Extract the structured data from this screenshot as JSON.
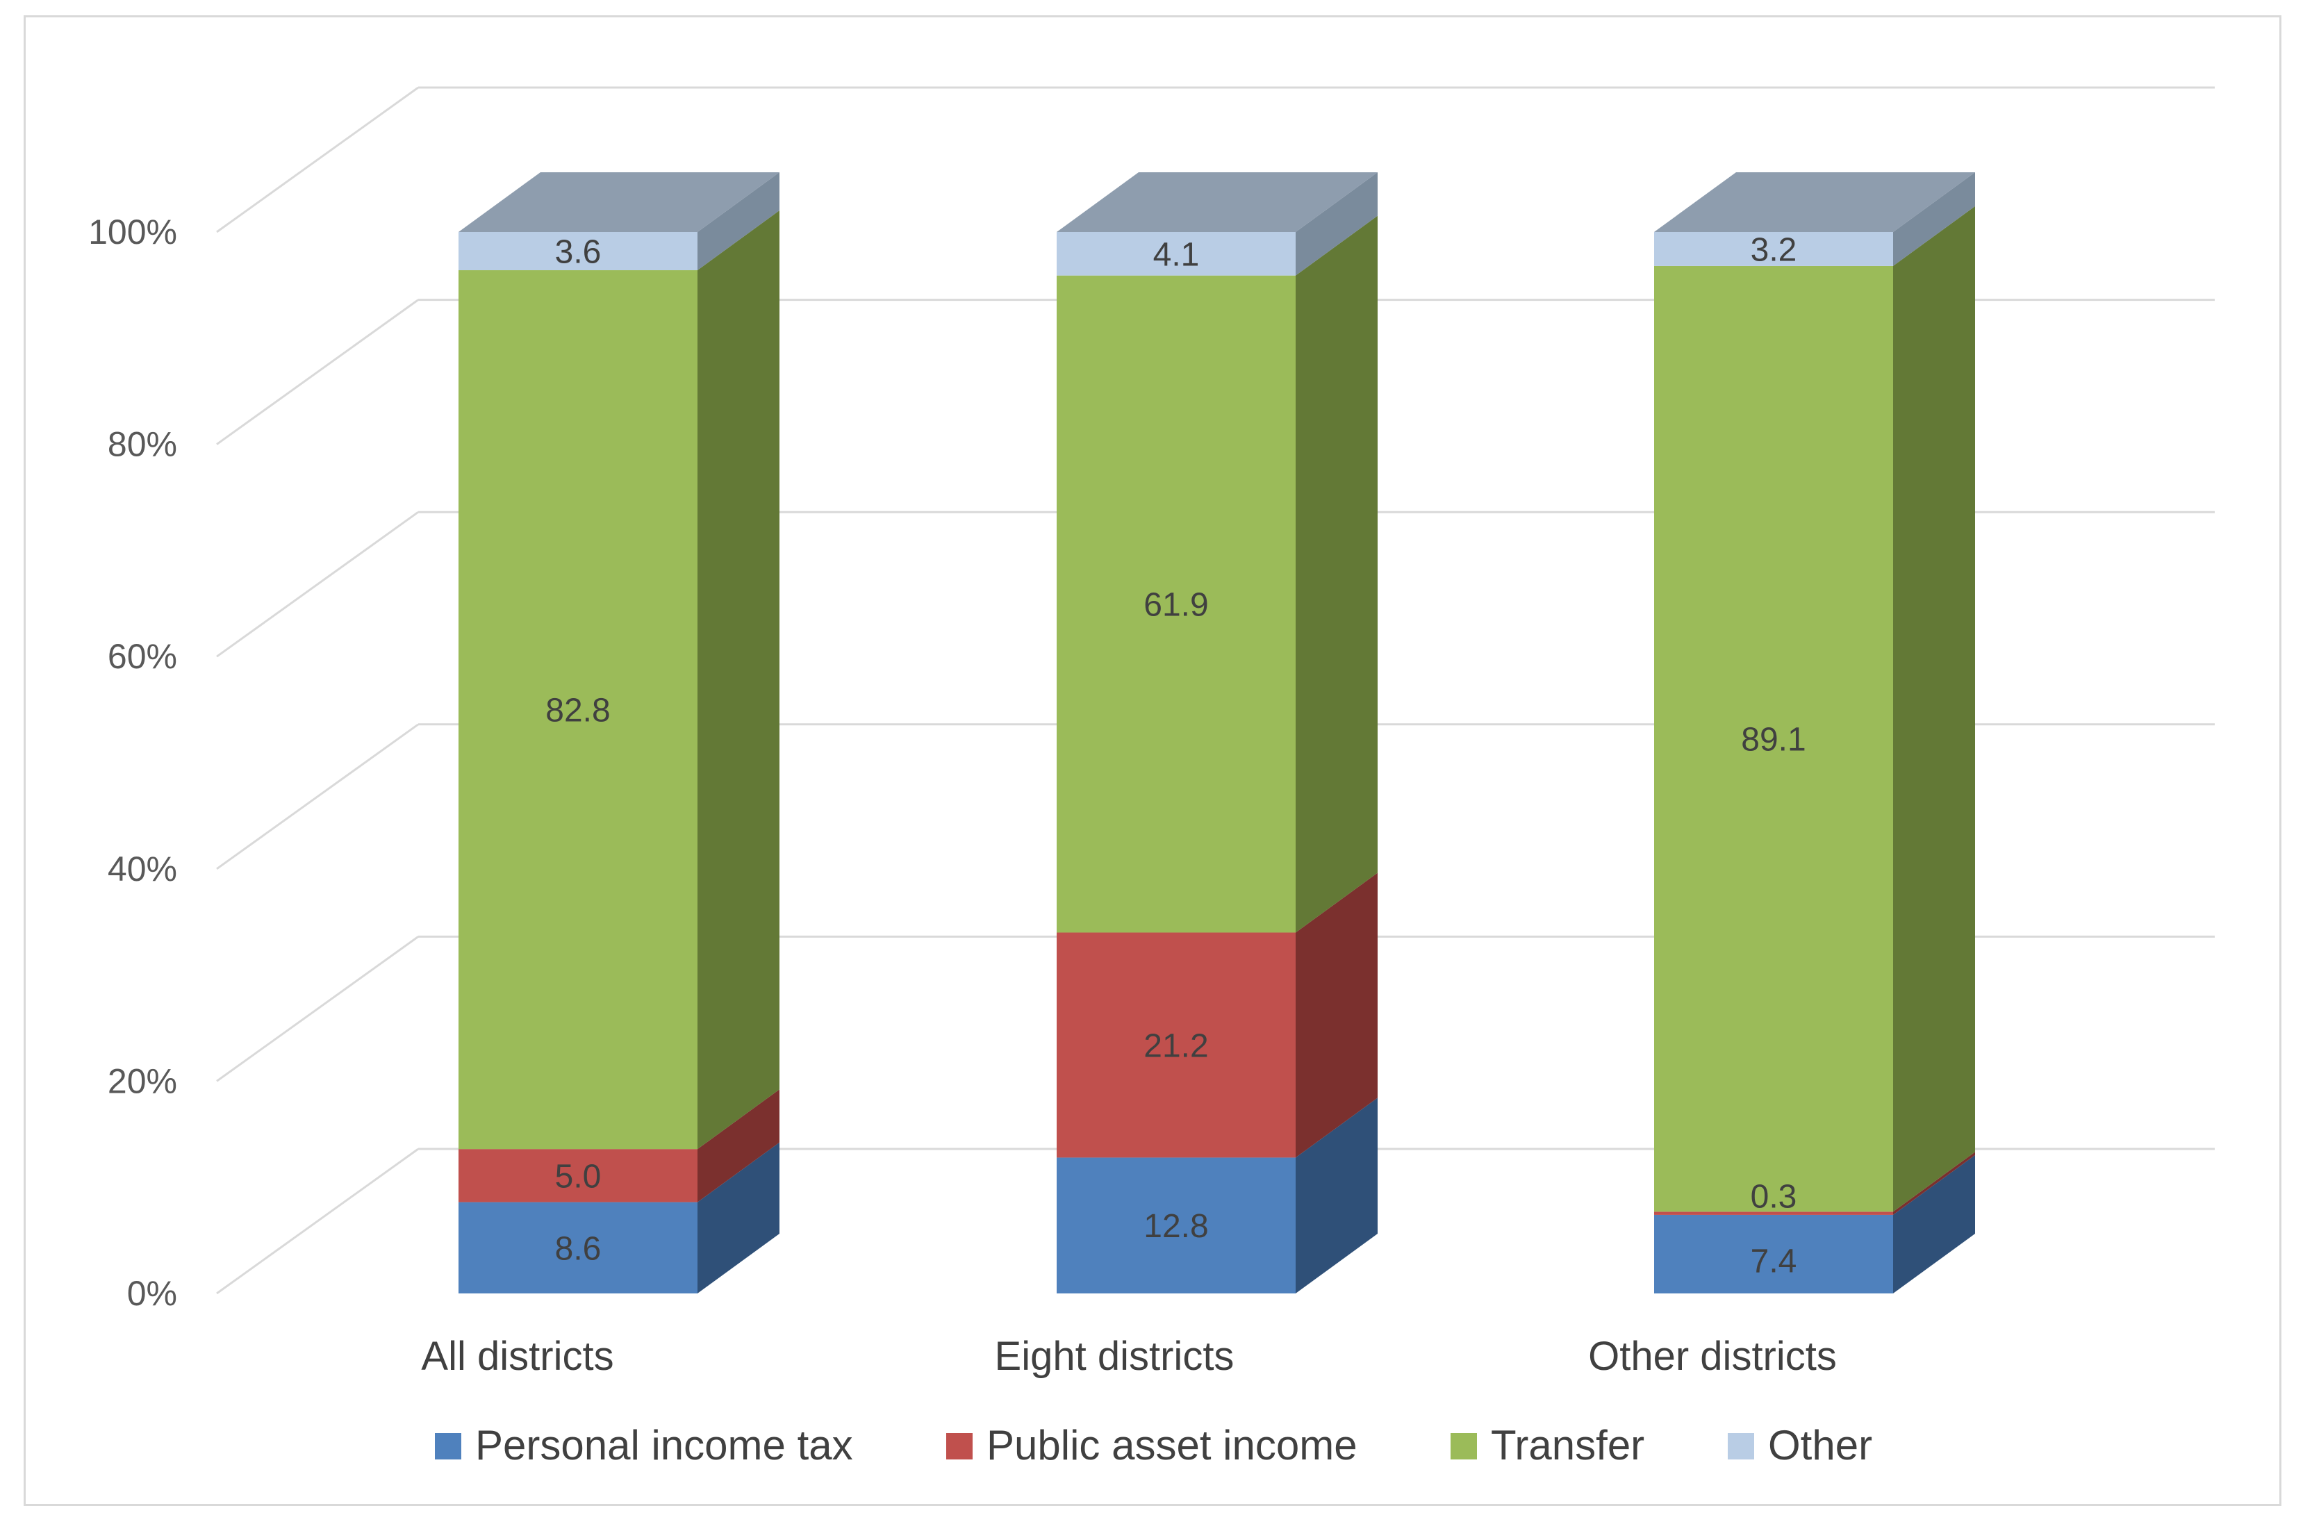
{
  "chart_data": {
    "type": "bar",
    "stacked": true,
    "percent": true,
    "three_d": true,
    "title": "",
    "xlabel": "",
    "ylabel": "",
    "ylim": [
      0,
      100
    ],
    "y_ticks": [
      "0%",
      "20%",
      "40%",
      "60%",
      "80%",
      "100%"
    ],
    "y_tick_values": [
      0,
      20,
      40,
      60,
      80,
      100
    ],
    "grid": true,
    "legend_position": "bottom",
    "categories": [
      "All districts",
      "Eight districts",
      "Other districts"
    ],
    "series": [
      {
        "name": "Personal income tax",
        "color": "#4f81bd",
        "side_color": "#2f5078",
        "top_color": "#8aa7ce",
        "values": [
          8.6,
          12.8,
          7.4
        ],
        "labels": [
          "8.6",
          "12.8",
          "7.4"
        ]
      },
      {
        "name": "Public asset income",
        "color": "#c0504d",
        "side_color": "#7b302e",
        "top_color": "#d68a88",
        "values": [
          5.0,
          21.2,
          0.3
        ],
        "labels": [
          "5.0",
          "21.2",
          "0.3"
        ]
      },
      {
        "name": "Transfer",
        "color": "#9bbb59",
        "side_color": "#637936",
        "top_color": "#bcd38f",
        "values": [
          82.8,
          61.9,
          89.1
        ],
        "labels": [
          "82.8",
          "61.9",
          "89.1"
        ]
      },
      {
        "name": "Other",
        "color": "#b9cde5",
        "side_color": "#7a8b9c",
        "top_color": "#8e9dae",
        "values": [
          3.6,
          4.1,
          3.2
        ],
        "labels": [
          "3.6",
          "4.1",
          "3.2"
        ]
      }
    ],
    "colors": {
      "gridline": "#d9d9d9",
      "frame": "#d9d9d9",
      "tick_text": "#595959",
      "label_text": "#404040"
    }
  }
}
